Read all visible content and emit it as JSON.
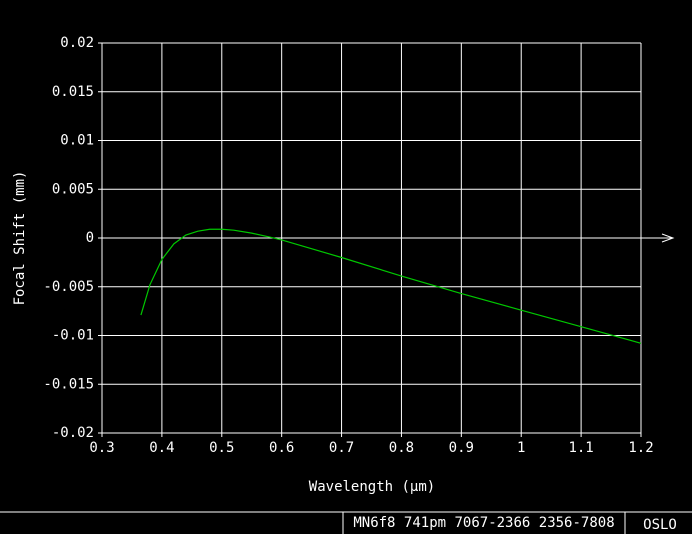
{
  "chart_data": {
    "type": "line",
    "x_label": "Wavelength (μm)",
    "y_label": "Focal Shift (mm)",
    "x": [
      0.365,
      0.38,
      0.4,
      0.42,
      0.44,
      0.46,
      0.48,
      0.5,
      0.52,
      0.55,
      0.58,
      0.6,
      0.7,
      0.8,
      0.9,
      1.0,
      1.1,
      1.2
    ],
    "series": [
      {
        "color": "#00c800",
        "values": [
          -0.0079,
          -0.0048,
          -0.0022,
          -0.0006,
          0.0003,
          0.0007,
          0.0009,
          0.0009,
          0.0008,
          0.0005,
          0.0001,
          -0.0002,
          -0.002,
          -0.0039,
          -0.0057,
          -0.0074,
          -0.0091,
          -0.0108
        ]
      }
    ],
    "xlim": [
      0.3,
      1.2
    ],
    "xticks": [
      0.3,
      0.4,
      0.5,
      0.6,
      0.7,
      0.8,
      0.9,
      1,
      1.1,
      1.2
    ],
    "ylim": [
      -0.02,
      0.02
    ],
    "yticks": [
      0.02,
      0.015,
      0.01,
      0.005,
      0,
      -0.005,
      -0.01,
      -0.015,
      -0.02
    ],
    "grid": true
  },
  "footer": {
    "id": "MN6f8 741pm 7067-2366 2356-7808",
    "program": "OSLO"
  }
}
